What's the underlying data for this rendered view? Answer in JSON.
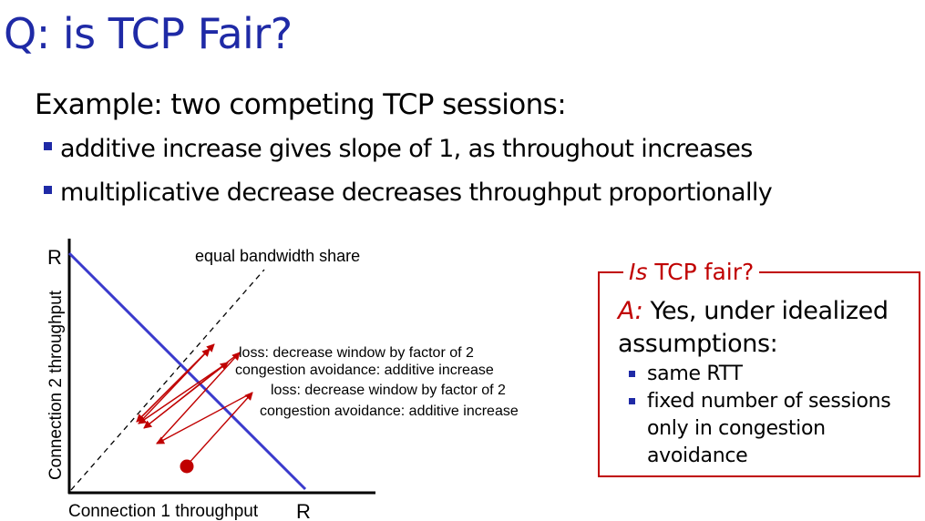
{
  "slide": {
    "title": "Q: is TCP Fair?",
    "subtitle": "Example: two competing TCP sessions:",
    "bullets": [
      "additive increase gives slope of 1, as throughout increases",
      "multiplicative decrease decreases throughput proportionally"
    ]
  },
  "diagram": {
    "y_axis_label": "Connection 2 throughput",
    "x_axis_label": "Connection 1 throughput",
    "y_max_label": "R",
    "x_max_label": "R",
    "equal_share_label": "equal bandwidth share",
    "annotations": [
      "loss: decrease window by factor of 2",
      "congestion avoidance: additive increase",
      "loss: decrease window by factor of 2",
      "congestion avoidance: additive increase"
    ],
    "colors": {
      "capacity_line": "#3a3acc",
      "trajectory": "#c00000",
      "axis": "#000000"
    }
  },
  "fairness_box": {
    "legend_italic": "Is",
    "legend_rest": " TCP fair?",
    "answer_prefix": "A:",
    "answer_text": " Yes, under idealized assumptions:",
    "items": [
      "same RTT",
      "fixed number of sessions only in congestion avoidance"
    ],
    "border_color": "#c00000"
  }
}
